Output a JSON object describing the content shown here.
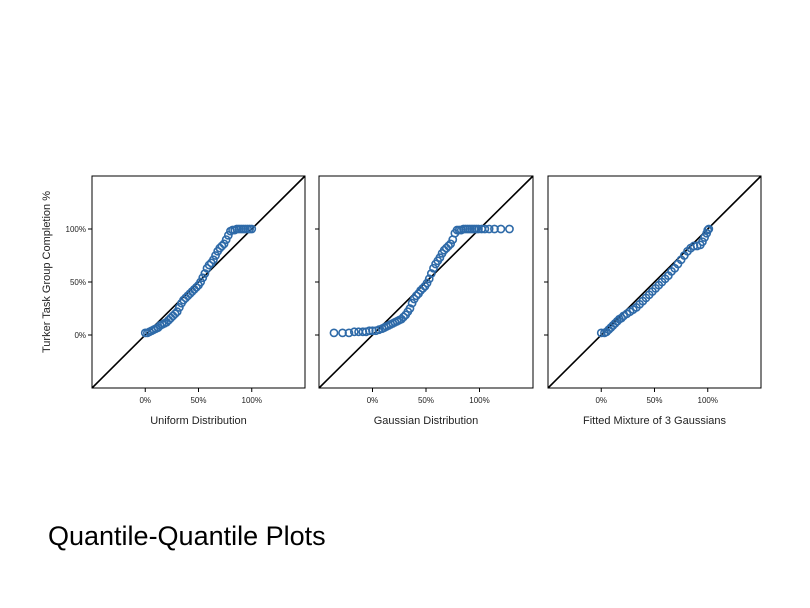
{
  "slide": {
    "title": "Quantile-Quantile Plots",
    "y_axis_label": "Turker Task Group Completion %"
  },
  "style": {
    "point_color": "#2e6aa8",
    "line_color": "#000000"
  },
  "chart_data": [
    {
      "type": "scatter",
      "xlabel": "Uniform Distribution",
      "ylabel": "Turker Task Group Completion %",
      "xlim": [
        -50,
        150
      ],
      "ylim": [
        -50,
        150
      ],
      "x_ticks": [
        0,
        50,
        100
      ],
      "x_tick_labels": [
        "0%",
        "50%",
        "100%"
      ],
      "y_ticks": [
        0,
        50,
        100
      ],
      "y_tick_labels": [
        "0%",
        "50%",
        "100%"
      ],
      "reference_line": "identity",
      "grid": false,
      "x": [
        0,
        2,
        4,
        6,
        8,
        10,
        12,
        14,
        16,
        18,
        20,
        22,
        24,
        26,
        28,
        30,
        32,
        34,
        36,
        38,
        40,
        42,
        44,
        46,
        48,
        50,
        52,
        54,
        56,
        58,
        60,
        62,
        64,
        66,
        68,
        70,
        72,
        74,
        76,
        78,
        80,
        82,
        84,
        86,
        88,
        90,
        92,
        94,
        96,
        98,
        100
      ],
      "y": [
        2,
        2,
        3,
        4,
        5,
        6,
        7,
        9,
        10,
        11,
        12,
        14,
        16,
        18,
        20,
        22,
        26,
        30,
        33,
        35,
        37,
        39,
        41,
        43,
        45,
        47,
        50,
        54,
        58,
        63,
        66,
        68,
        71,
        75,
        79,
        82,
        84,
        86,
        90,
        94,
        98,
        99,
        99,
        100,
        100,
        100,
        100,
        100,
        100,
        100,
        100
      ]
    },
    {
      "type": "scatter",
      "xlabel": "Gaussian Distribution",
      "xlim": [
        -50,
        150
      ],
      "ylim": [
        -50,
        150
      ],
      "x_ticks": [
        0,
        50,
        100
      ],
      "x_tick_labels": [
        "0%",
        "50%",
        "100%"
      ],
      "y_ticks": [
        0,
        50,
        100
      ],
      "reference_line": "identity",
      "grid": false,
      "x": [
        -36,
        -28,
        -22,
        -17,
        -13,
        -9,
        -6,
        -3,
        0,
        3,
        6,
        9,
        11,
        13,
        15,
        17,
        19,
        21,
        23,
        25,
        27,
        29,
        31,
        33,
        35,
        37,
        39,
        41,
        43,
        45,
        47,
        49,
        51,
        53,
        55,
        57,
        59,
        61,
        63,
        65,
        67,
        69,
        71,
        73,
        75,
        77,
        79,
        81,
        83,
        85,
        87,
        89,
        91,
        93,
        95,
        97,
        99,
        102,
        105,
        109,
        114,
        120,
        128
      ],
      "y": [
        2,
        2,
        2,
        3,
        3,
        3,
        3,
        4,
        4,
        4,
        5,
        6,
        7,
        8,
        9,
        10,
        11,
        12,
        13,
        14,
        15,
        17,
        19,
        22,
        25,
        30,
        34,
        37,
        39,
        42,
        44,
        46,
        49,
        53,
        58,
        63,
        67,
        70,
        73,
        77,
        80,
        82,
        84,
        86,
        90,
        96,
        99,
        99,
        99,
        100,
        100,
        100,
        100,
        100,
        100,
        100,
        100,
        100,
        100,
        100,
        100,
        100,
        100
      ]
    },
    {
      "type": "scatter",
      "xlabel": "Fitted Mixture of 3 Gaussians",
      "xlim": [
        -50,
        150
      ],
      "ylim": [
        -50,
        150
      ],
      "x_ticks": [
        0,
        50,
        100
      ],
      "x_tick_labels": [
        "0%",
        "50%",
        "100%"
      ],
      "y_ticks": [
        0,
        50,
        100
      ],
      "reference_line": "identity",
      "grid": false,
      "x": [
        0,
        3,
        5,
        7,
        9,
        11,
        13,
        15,
        17,
        19,
        21,
        24,
        27,
        30,
        33,
        36,
        39,
        42,
        45,
        48,
        51,
        54,
        57,
        60,
        63,
        66,
        69,
        72,
        75,
        78,
        81,
        84,
        87,
        90,
        93,
        95,
        97,
        99,
        100,
        101
      ],
      "y": [
        2,
        2,
        3,
        5,
        7,
        9,
        11,
        13,
        15,
        16,
        18,
        20,
        22,
        24,
        26,
        29,
        32,
        35,
        38,
        41,
        44,
        47,
        50,
        53,
        56,
        60,
        63,
        67,
        71,
        75,
        79,
        82,
        84,
        84,
        85,
        88,
        92,
        96,
        99,
        100
      ]
    }
  ]
}
